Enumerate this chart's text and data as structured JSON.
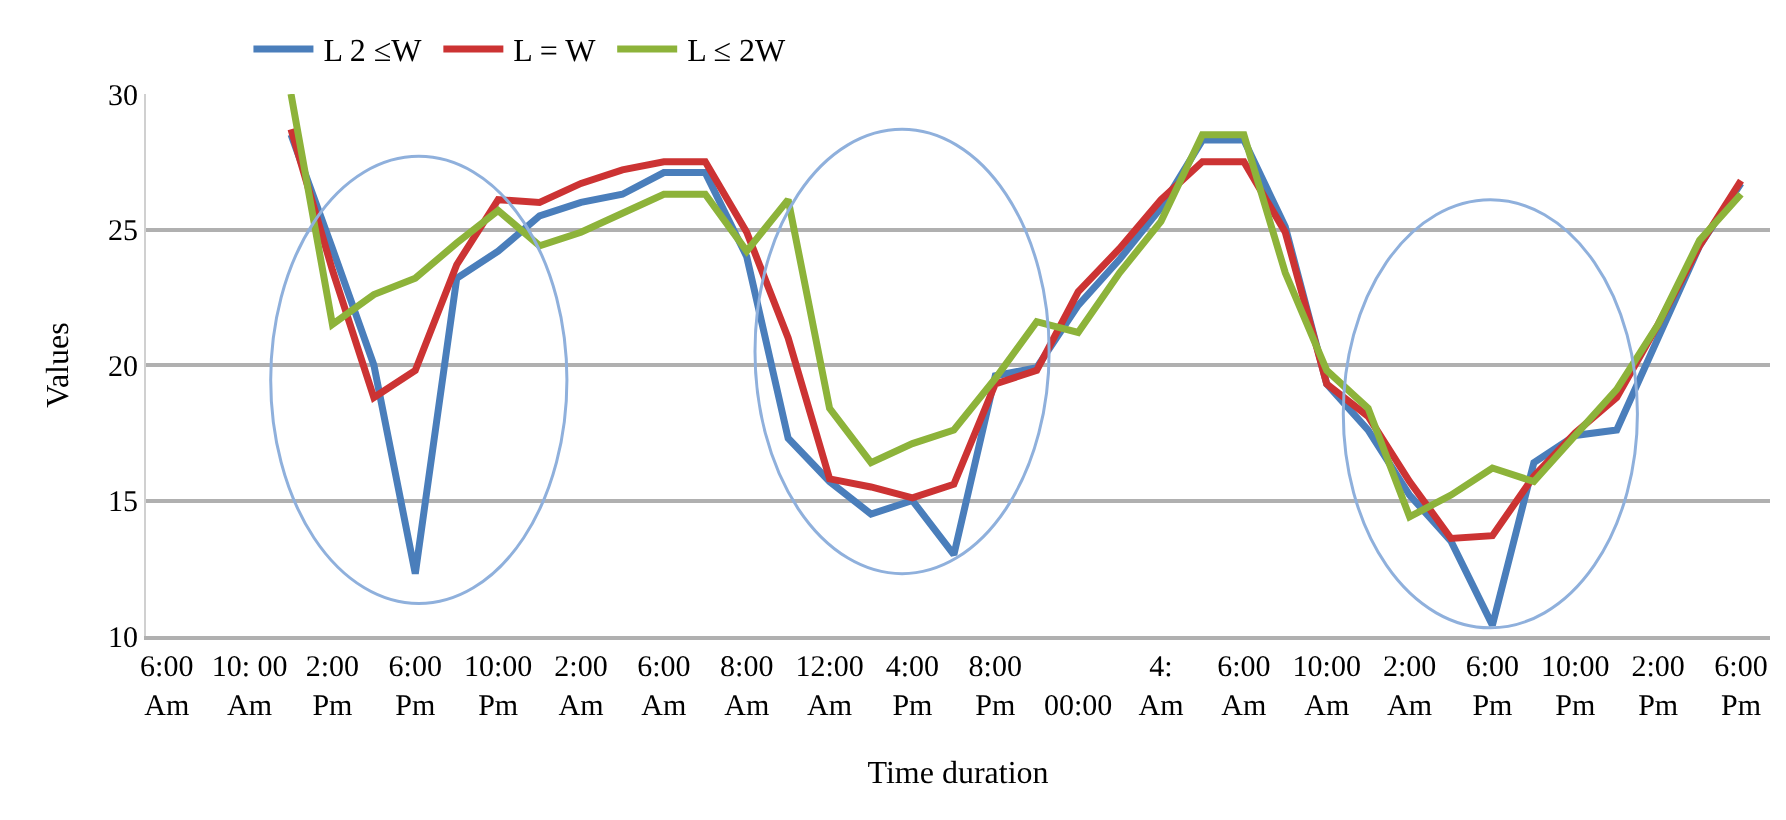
{
  "chart_data": {
    "type": "line",
    "xlabel": "Time duration",
    "ylabel": "Values",
    "categories": [
      "6:00\nAm",
      null,
      "10: 00\nAm",
      null,
      "2:00\nPm",
      null,
      "6:00\nPm",
      null,
      "10:00\nPm",
      null,
      "2:00\nAm",
      null,
      "6:00\nAm",
      null,
      "8:00\nAm",
      null,
      "12:00\nAm",
      null,
      "4:00\nPm",
      null,
      "8:00\nPm",
      null,
      "\n00:00",
      null,
      "4:\nAm",
      null,
      "6:00\nAm",
      null,
      "10:00\nAm",
      null,
      "2:00\nAm",
      null,
      "6:00\nPm",
      null,
      "10:00\nPm",
      null,
      "2:00\nPm",
      null,
      "6:00\nPm"
    ],
    "series": [
      {
        "name": "L 2 ≤W",
        "color": "#4a7ebb",
        "values": [
          null,
          null,
          null,
          28.5,
          24.3,
          20.0,
          12.3,
          23.2,
          24.2,
          25.5,
          26.0,
          26.3,
          27.1,
          27.1,
          24.0,
          17.3,
          15.7,
          14.5,
          15.0,
          13.0,
          19.6,
          19.9,
          22.2,
          23.9,
          25.8,
          28.3,
          28.3,
          25.1,
          19.3,
          17.6,
          15.2,
          13.5,
          10.4,
          16.4,
          17.4,
          17.6,
          21.0,
          24.4,
          26.7
        ]
      },
      {
        "name": "L = W",
        "color": "#cc3333",
        "values": [
          null,
          null,
          null,
          28.7,
          23.5,
          18.8,
          19.8,
          23.7,
          26.1,
          26.0,
          26.7,
          27.2,
          27.5,
          27.5,
          24.9,
          21.0,
          15.8,
          15.5,
          15.1,
          15.6,
          19.3,
          19.8,
          22.7,
          24.3,
          26.1,
          27.5,
          27.5,
          24.9,
          19.3,
          18.1,
          15.7,
          13.6,
          13.7,
          15.9,
          17.5,
          18.8,
          21.5,
          24.4,
          26.8
        ]
      },
      {
        "name": "L ≤ 2W",
        "color": "#8db33a",
        "values": [
          null,
          null,
          null,
          30,
          21.5,
          22.6,
          23.2,
          24.5,
          25.7,
          24.4,
          24.9,
          25.6,
          26.3,
          26.3,
          24.2,
          26.1,
          18.4,
          16.4,
          17.1,
          17.6,
          19.5,
          21.6,
          21.2,
          23.4,
          25.3,
          28.5,
          28.5,
          23.4,
          19.8,
          18.4,
          14.4,
          15.2,
          16.2,
          15.7,
          17.4,
          19.1,
          21.5,
          24.6,
          26.3
        ]
      }
    ],
    "ylim": [
      10,
      30
    ],
    "yticks": [
      10,
      15,
      20,
      25,
      30
    ],
    "grid": "y",
    "legend": "top",
    "marker": "none",
    "line_style": "solid"
  }
}
